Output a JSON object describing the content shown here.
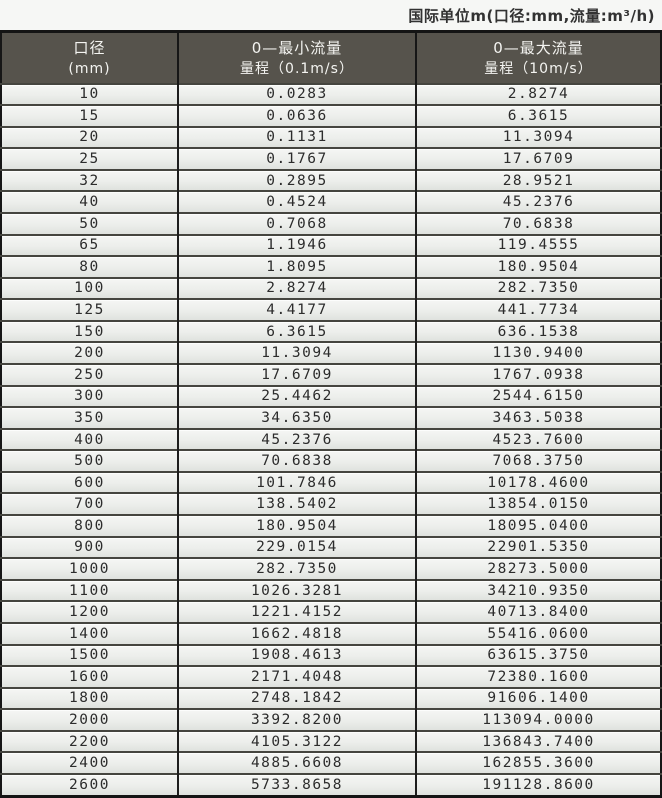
{
  "title": "国际单位m(口径:mm,流量:m³/h)",
  "table": {
    "columns": [
      {
        "line1": "口径",
        "line2": "(mm)"
      },
      {
        "line1": "0—最小流量",
        "line2": "量程（0.1m/s）"
      },
      {
        "line1": "0—最大流量",
        "line2": "量程（10m/s）"
      }
    ],
    "rows": [
      [
        "10",
        "0.0283",
        "2.8274"
      ],
      [
        "15",
        "0.0636",
        "6.3615"
      ],
      [
        "20",
        "0.1131",
        "11.3094"
      ],
      [
        "25",
        "0.1767",
        "17.6709"
      ],
      [
        "32",
        "0.2895",
        "28.9521"
      ],
      [
        "40",
        "0.4524",
        "45.2376"
      ],
      [
        "50",
        "0.7068",
        "70.6838"
      ],
      [
        "65",
        "1.1946",
        "119.4555"
      ],
      [
        "80",
        "1.8095",
        "180.9504"
      ],
      [
        "100",
        "2.8274",
        "282.7350"
      ],
      [
        "125",
        "4.4177",
        "441.7734"
      ],
      [
        "150",
        "6.3615",
        "636.1538"
      ],
      [
        "200",
        "11.3094",
        "1130.9400"
      ],
      [
        "250",
        "17.6709",
        "1767.0938"
      ],
      [
        "300",
        "25.4462",
        "2544.6150"
      ],
      [
        "350",
        "34.6350",
        "3463.5038"
      ],
      [
        "400",
        "45.2376",
        "4523.7600"
      ],
      [
        "500",
        "70.6838",
        "7068.3750"
      ],
      [
        "600",
        "101.7846",
        "10178.4600"
      ],
      [
        "700",
        "138.5402",
        "13854.0150"
      ],
      [
        "800",
        "180.9504",
        "18095.0400"
      ],
      [
        "900",
        "229.0154",
        "22901.5350"
      ],
      [
        "1000",
        "282.7350",
        "28273.5000"
      ],
      [
        "1100",
        "1026.3281",
        "34210.9350"
      ],
      [
        "1200",
        "1221.4152",
        "40713.8400"
      ],
      [
        "1400",
        "1662.4818",
        "55416.0600"
      ],
      [
        "1500",
        "1908.4613",
        "63615.3750"
      ],
      [
        "1600",
        "2171.4048",
        "72380.1600"
      ],
      [
        "1800",
        "2748.1842",
        "91606.1400"
      ],
      [
        "2000",
        "3392.8200",
        "113094.0000"
      ],
      [
        "2200",
        "4105.3122",
        "136843.7400"
      ],
      [
        "2400",
        "4885.6608",
        "162855.3600"
      ],
      [
        "2600",
        "5733.8658",
        "191128.8600"
      ]
    ]
  },
  "colors": {
    "header_bg": "#56534c",
    "header_text": "#f4f4f1",
    "row_bg_top": "#f5f6f4",
    "row_bg_bottom": "#dfe2de",
    "row_separator": "#45453f",
    "frame": "#161616",
    "page_bg": "#f6f7f5",
    "data_text": "#2c2c2c"
  },
  "chart_data": {
    "type": "table",
    "title": "国际单位m(口径:mm,流量:m³/h)",
    "columns": [
      "口径 (mm)",
      "0—最小流量 量程（0.1m/s）",
      "0—最大流量 量程（10m/s）"
    ],
    "units": {
      "口径": "mm",
      "流量": "m³/h"
    },
    "rows": [
      [
        10,
        0.0283,
        2.8274
      ],
      [
        15,
        0.0636,
        6.3615
      ],
      [
        20,
        0.1131,
        11.3094
      ],
      [
        25,
        0.1767,
        17.6709
      ],
      [
        32,
        0.2895,
        28.9521
      ],
      [
        40,
        0.4524,
        45.2376
      ],
      [
        50,
        0.7068,
        70.6838
      ],
      [
        65,
        1.1946,
        119.4555
      ],
      [
        80,
        1.8095,
        180.9504
      ],
      [
        100,
        2.8274,
        282.735
      ],
      [
        125,
        4.4177,
        441.7734
      ],
      [
        150,
        6.3615,
        636.1538
      ],
      [
        200,
        11.3094,
        1130.94
      ],
      [
        250,
        17.6709,
        1767.0938
      ],
      [
        300,
        25.4462,
        2544.615
      ],
      [
        350,
        34.635,
        3463.5038
      ],
      [
        400,
        45.2376,
        4523.76
      ],
      [
        500,
        70.6838,
        7068.375
      ],
      [
        600,
        101.7846,
        10178.46
      ],
      [
        700,
        138.5402,
        13854.015
      ],
      [
        800,
        180.9504,
        18095.04
      ],
      [
        900,
        229.0154,
        22901.535
      ],
      [
        1000,
        282.735,
        28273.5
      ],
      [
        1100,
        1026.3281,
        34210.935
      ],
      [
        1200,
        1221.4152,
        40713.84
      ],
      [
        1400,
        1662.4818,
        55416.06
      ],
      [
        1500,
        1908.4613,
        63615.375
      ],
      [
        1600,
        2171.4048,
        72380.16
      ],
      [
        1800,
        2748.1842,
        91606.14
      ],
      [
        2000,
        3392.82,
        113094.0
      ],
      [
        2200,
        4105.3122,
        136843.74
      ],
      [
        2400,
        4885.6608,
        162855.36
      ],
      [
        2600,
        5733.8658,
        191128.86
      ]
    ]
  }
}
